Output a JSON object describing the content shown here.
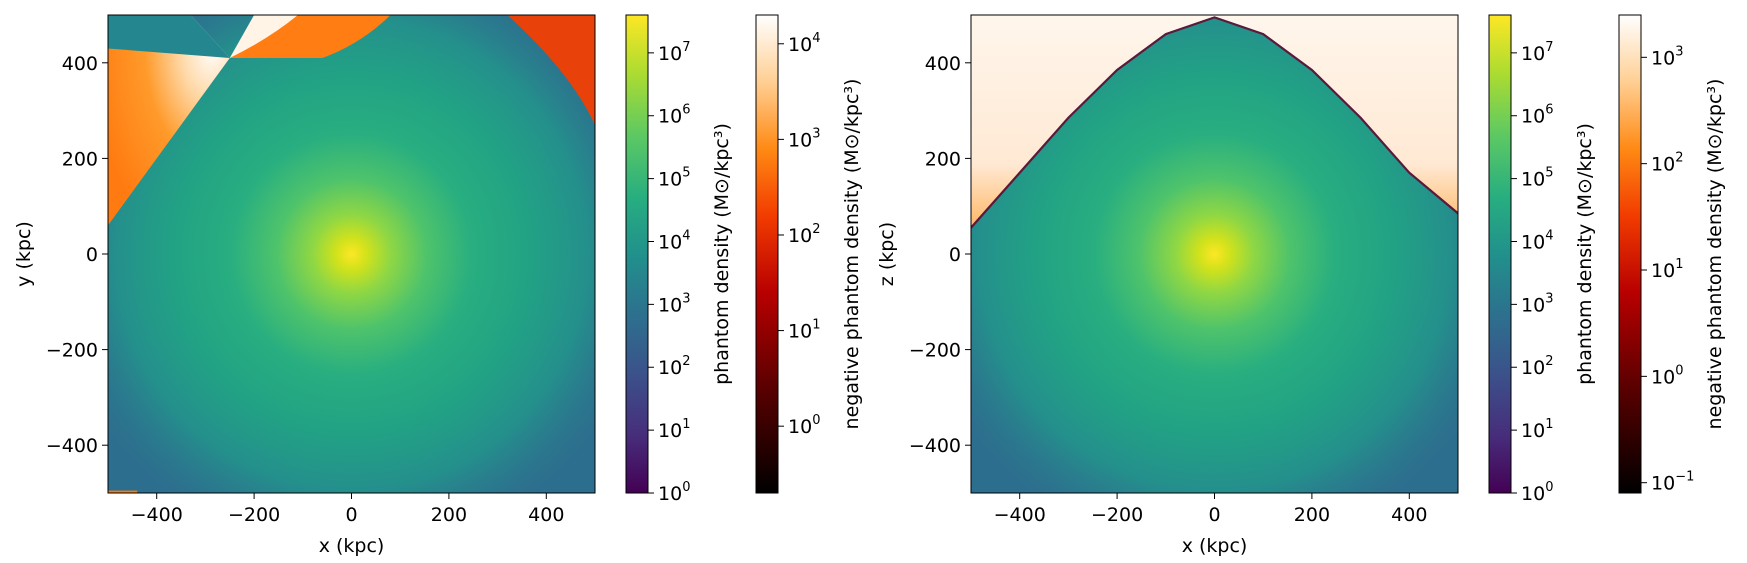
{
  "chart_data": [
    {
      "type": "heatmap",
      "panel": "left",
      "title": "",
      "xlabel": "x (kpc)",
      "ylabel": "y (kpc)",
      "xlim": [
        -500,
        500
      ],
      "ylim": [
        -500,
        500
      ],
      "xticks": [
        -400,
        -200,
        0,
        200,
        400
      ],
      "yticks": [
        -400,
        -200,
        0,
        200,
        400
      ],
      "xtick_labels": [
        "−400",
        "−200",
        "0",
        "200",
        "400"
      ],
      "ytick_labels": [
        "−400",
        "−200",
        "0",
        "200",
        "400"
      ],
      "grid": false,
      "peak_position": [
        0,
        0
      ],
      "negative_region": "upper-left sector, top edge and upper-right corner",
      "colorbars": [
        {
          "label": "phantom density (M⊙/kpc³)",
          "colormap": "viridis",
          "scale": "log",
          "range": [
            1,
            40000000
          ],
          "tick_exponents": [
            0,
            1,
            2,
            3,
            4,
            5,
            6,
            7
          ]
        },
        {
          "label": "negative phantom density (M⊙/kpc³)",
          "colormap": "gist_heat",
          "scale": "log",
          "range": [
            0.2,
            20000
          ],
          "tick_exponents": [
            0,
            1,
            2,
            3,
            4
          ]
        }
      ]
    },
    {
      "type": "heatmap",
      "panel": "right",
      "title": "",
      "xlabel": "x (kpc)",
      "ylabel": "z (kpc)",
      "xlim": [
        -500,
        500
      ],
      "ylim": [
        -500,
        500
      ],
      "xticks": [
        -400,
        -200,
        0,
        200,
        400
      ],
      "yticks": [
        -400,
        -200,
        0,
        200,
        400
      ],
      "xtick_labels": [
        "−400",
        "−200",
        "0",
        "200",
        "400"
      ],
      "ytick_labels": [
        "−400",
        "−200",
        "0",
        "200",
        "400"
      ],
      "grid": false,
      "peak_position": [
        0,
        0
      ],
      "negative_region": "upper corners outside parabolic boundary",
      "boundary_curve": {
        "x": [
          -500,
          -400,
          -300,
          -200,
          -100,
          0,
          100,
          200,
          300,
          400,
          500
        ],
        "z": [
          55,
          170,
          285,
          385,
          460,
          495,
          460,
          385,
          285,
          170,
          85
        ]
      },
      "colorbars": [
        {
          "label": "phantom density (M⊙/kpc³)",
          "colormap": "viridis",
          "scale": "log",
          "range": [
            1,
            40000000
          ],
          "tick_exponents": [
            0,
            1,
            2,
            3,
            4,
            5,
            6,
            7
          ]
        },
        {
          "label": "negative phantom density (M⊙/kpc³)",
          "colormap": "gist_heat",
          "scale": "log",
          "range": [
            0.08,
            2500
          ],
          "tick_exponents": [
            -1,
            0,
            1,
            2,
            3
          ]
        }
      ]
    }
  ]
}
